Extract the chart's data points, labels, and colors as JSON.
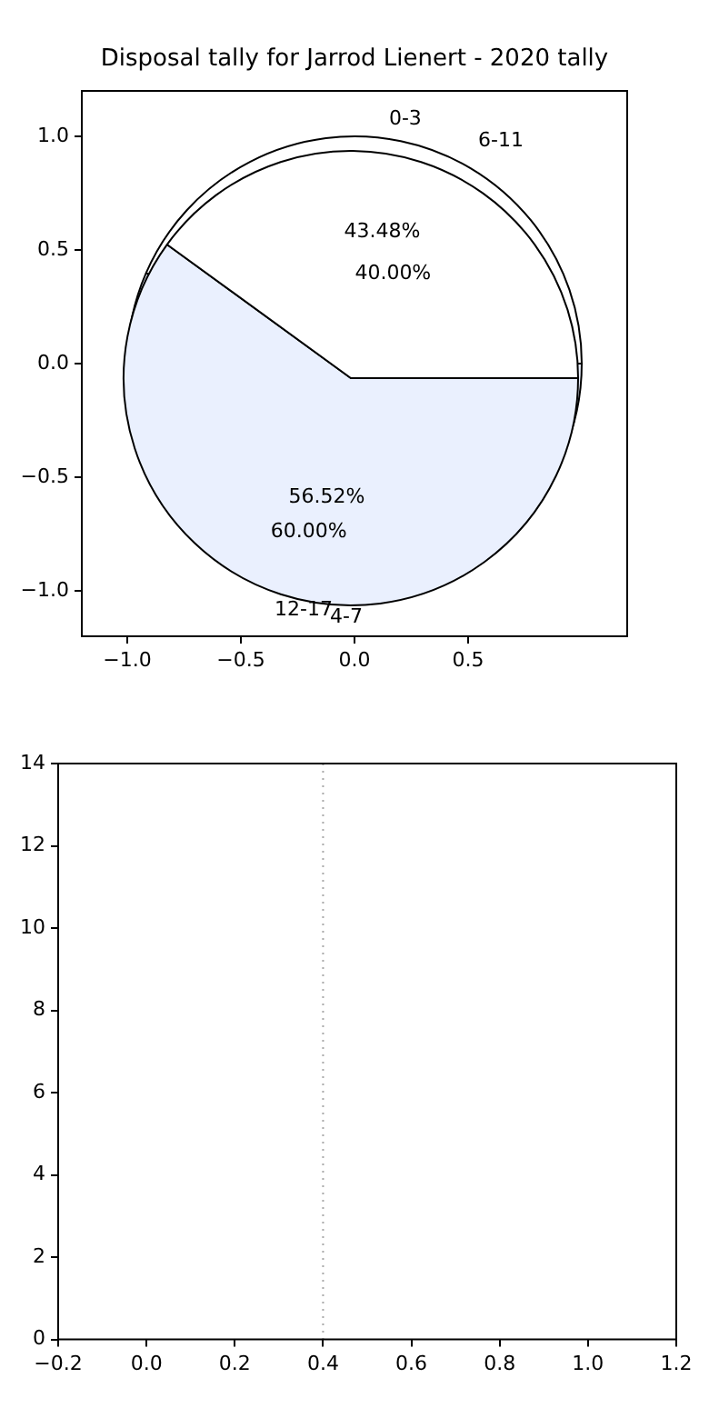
{
  "chart_data": [
    {
      "type": "scatter",
      "title": "Disposal tally for Jarrod Lienert - 2020 tally",
      "xlim": [
        -1.2,
        1.2
      ],
      "ylim": [
        -1.2,
        1.2
      ],
      "xticks": [
        {
          "value": -1,
          "label": "−1.0"
        },
        {
          "value": -0.5,
          "label": "−0.5"
        },
        {
          "value": 0,
          "label": "0.0"
        },
        {
          "value": 0.5,
          "label": "0.5"
        }
      ],
      "yticks": [
        {
          "value": -1,
          "label": "−1.0"
        },
        {
          "value": -0.5,
          "label": "−0.5"
        },
        {
          "value": 0,
          "label": "0.0"
        },
        {
          "value": 0.5,
          "label": "0.5"
        },
        {
          "value": 1,
          "label": "1.0"
        }
      ]
    },
    {
      "type": "pie",
      "categories": [
        "0-3",
        "12-17"
      ],
      "values": [
        43.48,
        56.52
      ],
      "colors": [
        "#ffffff",
        "#eaf0fe"
      ],
      "value_labels": [
        "43.48%",
        "56.52%"
      ]
    },
    {
      "type": "pie",
      "categories": [
        "6-11",
        "4-7"
      ],
      "values": [
        40.0,
        60.0
      ],
      "colors": [
        "#ffffff",
        "#eaf0fe"
      ],
      "value_labels": [
        "40.00%",
        "60.00%"
      ]
    },
    {
      "type": "scatter",
      "xlim": [
        -0.2,
        1.2
      ],
      "xticks": [
        {
          "value": -0.2,
          "label": "−0.2"
        },
        {
          "value": 0,
          "label": "0.0"
        },
        {
          "value": 0.2,
          "label": "0.2"
        },
        {
          "value": 0.4,
          "label": "0.4"
        },
        {
          "value": 0.6,
          "label": "0.6"
        },
        {
          "value": 0.8,
          "label": "0.8"
        },
        {
          "value": 1.0,
          "label": "1.0"
        },
        {
          "value": 1.2,
          "label": "1.2"
        }
      ],
      "ylim": [
        0,
        14
      ],
      "yticks": [
        0,
        2,
        4,
        6,
        8,
        10,
        12,
        14
      ],
      "ref_lines": [
        {
          "axis": "x",
          "value": 0.4,
          "color": "#aaaaaa",
          "line_style": "dotted"
        }
      ]
    }
  ]
}
